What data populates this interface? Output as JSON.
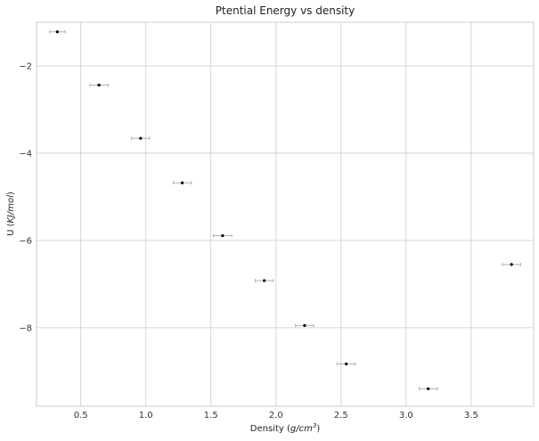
{
  "chart_data": {
    "type": "scatter",
    "title": "Ptential Energy vs density",
    "xlabel_prefix": "Density (",
    "xlabel_unit": "g/cm",
    "xlabel_exp": "3",
    "xlabel_suffix": ")",
    "ylabel_prefix": "U (",
    "ylabel_unit": "KJ/mol",
    "ylabel_suffix": ")",
    "xlim": [
      0.16,
      3.98
    ],
    "ylim": [
      -9.8,
      -1.0
    ],
    "xticks": [
      0.5,
      1.0,
      1.5,
      2.0,
      2.5,
      3.0,
      3.5
    ],
    "xtick_labels": [
      "0.5",
      "1.0",
      "1.5",
      "2.0",
      "2.5",
      "3.0",
      "3.5"
    ],
    "yticks": [
      -2,
      -4,
      -6,
      -8
    ],
    "ytick_labels": [
      "−2",
      "−4",
      "−6",
      "−8"
    ],
    "grid": true,
    "points": [
      {
        "x": 0.32,
        "y": -1.22,
        "xerr": 0.06
      },
      {
        "x": 0.64,
        "y": -2.44,
        "xerr": 0.07
      },
      {
        "x": 0.96,
        "y": -3.66,
        "xerr": 0.07
      },
      {
        "x": 1.28,
        "y": -4.68,
        "xerr": 0.07
      },
      {
        "x": 1.59,
        "y": -5.89,
        "xerr": 0.07
      },
      {
        "x": 1.91,
        "y": -6.92,
        "xerr": 0.07
      },
      {
        "x": 2.22,
        "y": -7.95,
        "xerr": 0.07
      },
      {
        "x": 2.54,
        "y": -8.83,
        "xerr": 0.07
      },
      {
        "x": 3.17,
        "y": -9.4,
        "xerr": 0.07
      },
      {
        "x": 3.81,
        "y": -6.55,
        "xerr": 0.07
      }
    ],
    "colors": {
      "marker": "#000000",
      "errorbar": "#b0b0b0",
      "grid": "#cccccc",
      "frame": "#cccccc"
    }
  }
}
